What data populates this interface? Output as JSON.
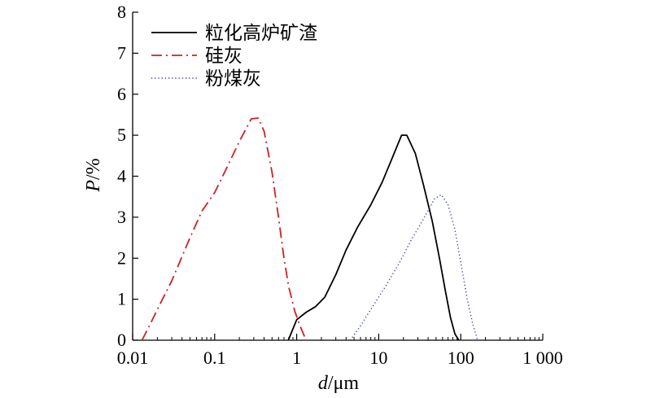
{
  "chart_data": {
    "type": "line",
    "title": "",
    "xlabel": {
      "italic": "d",
      "rest": "/μm"
    },
    "ylabel": {
      "italic": "P",
      "rest": "/%"
    },
    "xscale": "log",
    "xlim": [
      0.01,
      1000
    ],
    "ylim": [
      0,
      8
    ],
    "x_ticks": [
      {
        "value": 0.01,
        "label": "0.01"
      },
      {
        "value": 0.1,
        "label": "0.1"
      },
      {
        "value": 1,
        "label": "1"
      },
      {
        "value": 10,
        "label": "10"
      },
      {
        "value": 100,
        "label": "100"
      },
      {
        "value": 1000,
        "label": "1 000"
      }
    ],
    "y_ticks": [
      {
        "value": 0,
        "label": "0"
      },
      {
        "value": 1,
        "label": "1"
      },
      {
        "value": 2,
        "label": "2"
      },
      {
        "value": 3,
        "label": "3"
      },
      {
        "value": 4,
        "label": "4"
      },
      {
        "value": 5,
        "label": "5"
      },
      {
        "value": 6,
        "label": "6"
      },
      {
        "value": 7,
        "label": "7"
      },
      {
        "value": 8,
        "label": "8"
      }
    ],
    "legend_position": "top-left",
    "series": [
      {
        "name": "粒化高炉矿渣",
        "style": "solid",
        "color": "#000000",
        "points": [
          [
            0.79,
            0
          ],
          [
            1.0,
            0.5
          ],
          [
            1.3,
            0.68
          ],
          [
            1.7,
            0.82
          ],
          [
            2.2,
            1.05
          ],
          [
            3.0,
            1.6
          ],
          [
            4.0,
            2.2
          ],
          [
            5.5,
            2.75
          ],
          [
            8.0,
            3.3
          ],
          [
            11,
            3.85
          ],
          [
            15,
            4.5
          ],
          [
            19,
            5.0
          ],
          [
            22,
            5.0
          ],
          [
            28,
            4.55
          ],
          [
            35,
            3.8
          ],
          [
            45,
            2.9
          ],
          [
            55,
            2.0
          ],
          [
            65,
            1.2
          ],
          [
            75,
            0.55
          ],
          [
            85,
            0.15
          ],
          [
            95,
            0
          ]
        ]
      },
      {
        "name": "硅灰",
        "style": "dashdot",
        "color": "#cc2222",
        "points": [
          [
            0.013,
            0
          ],
          [
            0.016,
            0.35
          ],
          [
            0.02,
            0.75
          ],
          [
            0.03,
            1.45
          ],
          [
            0.05,
            2.5
          ],
          [
            0.07,
            3.15
          ],
          [
            0.1,
            3.6
          ],
          [
            0.14,
            4.2
          ],
          [
            0.2,
            4.85
          ],
          [
            0.28,
            5.4
          ],
          [
            0.34,
            5.42
          ],
          [
            0.4,
            5.1
          ],
          [
            0.5,
            4.1
          ],
          [
            0.6,
            3.0
          ],
          [
            0.7,
            2.0
          ],
          [
            0.8,
            1.3
          ],
          [
            0.95,
            0.7
          ],
          [
            1.1,
            0.35
          ],
          [
            1.3,
            0
          ]
        ]
      },
      {
        "name": "粉煤灰",
        "style": "dotted",
        "color": "#3333aa",
        "points": [
          [
            4.5,
            0
          ],
          [
            6,
            0.35
          ],
          [
            8,
            0.75
          ],
          [
            12,
            1.3
          ],
          [
            18,
            1.9
          ],
          [
            25,
            2.45
          ],
          [
            35,
            2.95
          ],
          [
            48,
            3.45
          ],
          [
            58,
            3.55
          ],
          [
            70,
            3.3
          ],
          [
            85,
            2.7
          ],
          [
            100,
            1.9
          ],
          [
            120,
            1.0
          ],
          [
            140,
            0.4
          ],
          [
            160,
            0
          ]
        ]
      }
    ]
  }
}
